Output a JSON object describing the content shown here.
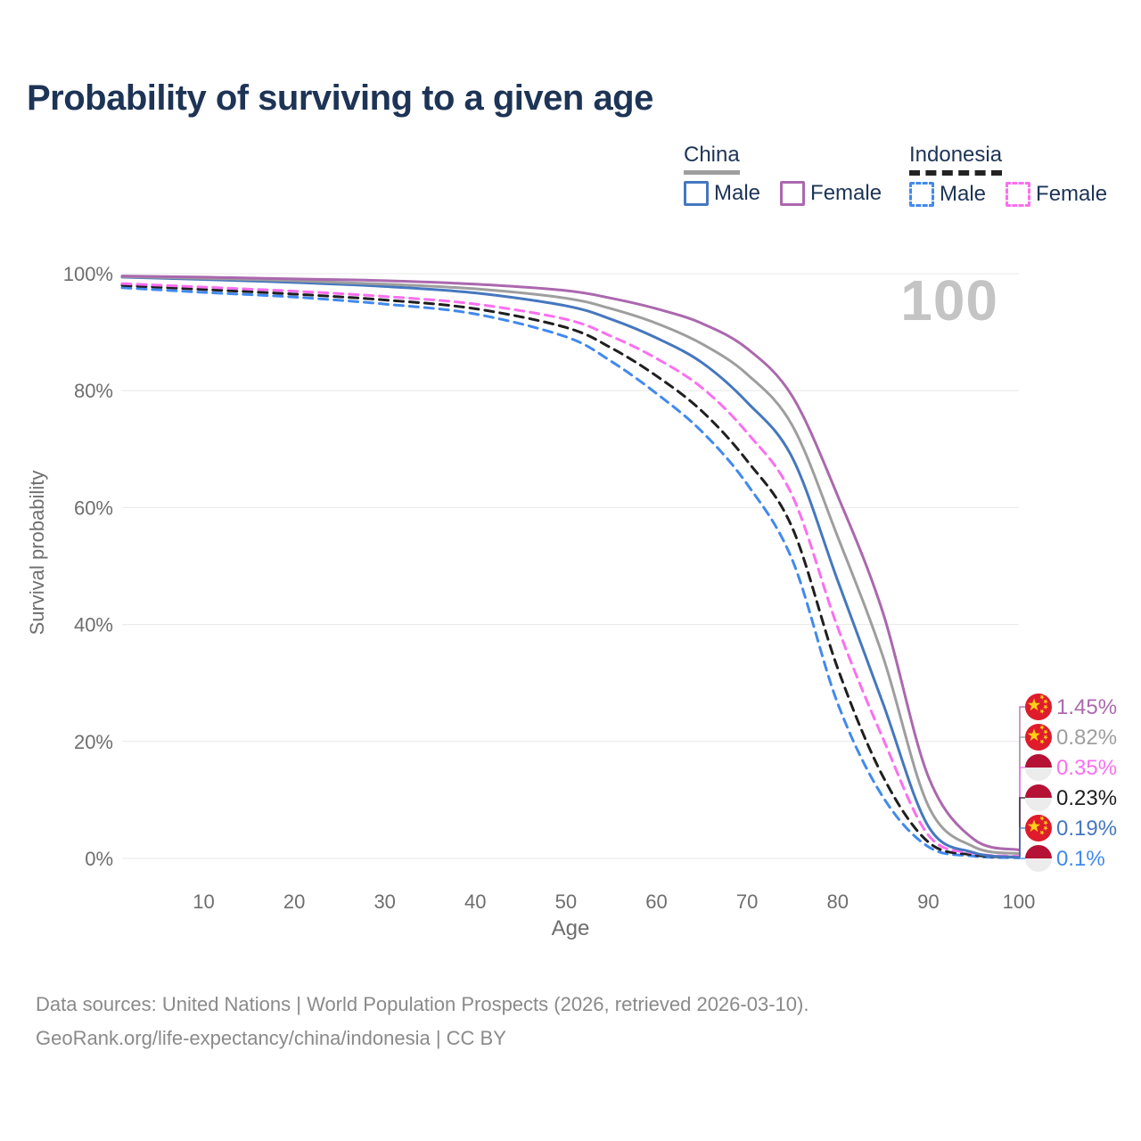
{
  "title": "Probability of surviving to a given age",
  "watermark": "100",
  "legend": {
    "groups": [
      {
        "id": "china",
        "label": "China",
        "line_style": "solid",
        "line_color": "#9e9e9e",
        "items": [
          {
            "id": "male",
            "label": "Male",
            "color": "#4577bf",
            "dashed": false
          },
          {
            "id": "female",
            "label": "Female",
            "color": "#ab68ae",
            "dashed": false
          }
        ]
      },
      {
        "id": "indonesia",
        "label": "Indonesia",
        "line_style": "dashed",
        "line_color": "#222222",
        "items": [
          {
            "id": "male",
            "label": "Male",
            "color": "#4189ee",
            "dashed": true
          },
          {
            "id": "female",
            "label": "Female",
            "color": "#fb6ff0",
            "dashed": true
          }
        ]
      }
    ]
  },
  "chart_data": {
    "type": "line",
    "title": "Probability of surviving to a given age",
    "xlabel": "Age",
    "ylabel": "Survival probability",
    "xlim": [
      1,
      100
    ],
    "ylim": [
      0,
      100
    ],
    "x_ticks": [
      10,
      20,
      30,
      40,
      50,
      60,
      70,
      80,
      90,
      100
    ],
    "y_ticks": [
      0,
      20,
      40,
      60,
      80,
      100
    ],
    "y_tick_suffix": "%",
    "grid": "horizontal",
    "legend_position": "top-right",
    "x": [
      1,
      10,
      20,
      30,
      40,
      50,
      55,
      60,
      65,
      70,
      75,
      80,
      85,
      90,
      95,
      100
    ],
    "series": [
      {
        "id": "indonesia-male",
        "group": "Indonesia",
        "item": "Male",
        "color": "#4189ee",
        "dashed": true,
        "flag": "indonesia",
        "end_label": "0.1%",
        "end_value": 0.1,
        "values": [
          97.6,
          96.8,
          96.0,
          94.8,
          93.1,
          89.2,
          85.0,
          79.5,
          73.0,
          64.0,
          51.0,
          26.5,
          10.5,
          2.0,
          0.4,
          0.1
        ]
      },
      {
        "id": "indonesia",
        "group": "Indonesia",
        "item": null,
        "color": "#1f1f1f",
        "dashed": true,
        "flag": "indonesia",
        "end_label": "0.23%",
        "end_value": 0.23,
        "values": [
          98.0,
          97.3,
          96.5,
          95.5,
          94.0,
          90.8,
          87.3,
          82.5,
          76.5,
          68.0,
          56.5,
          32.5,
          14.0,
          2.8,
          0.6,
          0.23
        ]
      },
      {
        "id": "indonesia-female",
        "group": "Indonesia",
        "item": "Female",
        "color": "#fb6ff0",
        "dashed": true,
        "flag": "indonesia",
        "end_label": "0.35%",
        "end_value": 0.35,
        "values": [
          98.3,
          97.7,
          97.0,
          96.1,
          94.8,
          92.2,
          89.3,
          85.5,
          80.5,
          72.8,
          62.0,
          39.5,
          20.5,
          4.0,
          0.9,
          0.35
        ]
      },
      {
        "id": "china-male",
        "group": "China",
        "item": "Male",
        "color": "#4577bf",
        "dashed": false,
        "flag": "china",
        "end_label": "0.19%",
        "end_value": 0.19,
        "values": [
          99.4,
          99.0,
          98.5,
          97.8,
          96.7,
          94.5,
          92.2,
          89.0,
          84.8,
          78.0,
          68.5,
          47.5,
          26.5,
          5.5,
          1.0,
          0.19
        ]
      },
      {
        "id": "china",
        "group": "China",
        "item": null,
        "color": "#9e9e9e",
        "dashed": false,
        "flag": "china",
        "end_label": "0.82%",
        "end_value": 0.82,
        "values": [
          99.5,
          99.2,
          98.8,
          98.2,
          97.4,
          95.8,
          94.0,
          91.5,
          88.0,
          82.8,
          74.0,
          55.0,
          34.5,
          9.0,
          2.0,
          0.82
        ]
      },
      {
        "id": "china-female",
        "group": "China",
        "item": "Female",
        "color": "#ab68ae",
        "dashed": false,
        "flag": "china",
        "end_label": "1.45%",
        "end_value": 1.45,
        "values": [
          99.6,
          99.4,
          99.1,
          98.8,
          98.2,
          97.1,
          95.8,
          94.0,
          91.5,
          87.2,
          79.0,
          62.0,
          42.0,
          14.0,
          3.3,
          1.45
        ]
      }
    ],
    "flag_colors": {
      "china_red": "#df1b2c",
      "china_star_yellow": "#fcd116",
      "indonesia_red": "#b51235",
      "indonesia_white": "#ececec"
    }
  },
  "footer": {
    "line1": "Data sources: United Nations | World Population Prospects (2026, retrieved 2026-03-10).",
    "line2": "GeoRank.org/life-expectancy/china/indonesia | CC BY"
  }
}
